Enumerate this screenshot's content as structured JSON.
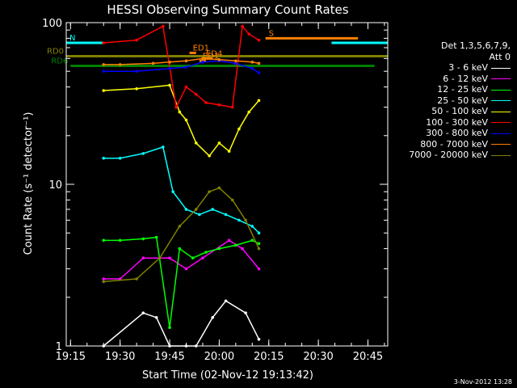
{
  "title": "HESSI Observing Summary Count Rates",
  "stamp": "3-Nov-2012 13:28",
  "chart_data": {
    "type": "line",
    "title": "HESSI Observing Summary Count Rates",
    "xlabel": "Start Time (02-Nov-12 19:13:42)",
    "ylabel": "Count Rate (s⁻¹ detector⁻¹)",
    "x_start": "19:13:42",
    "xlim": [
      "19:13:42",
      "20:51:00"
    ],
    "ylim": [
      1,
      100
    ],
    "ylog": true,
    "xticks": [
      "19:15",
      "19:30",
      "19:45",
      "20:00",
      "20:15",
      "20:30",
      "20:45"
    ],
    "yticks": [
      "1",
      "10",
      "100"
    ],
    "legend_placement": "right",
    "legend_header": [
      "Det 1,3,5,6,7,9,",
      "Att 0"
    ],
    "series": [
      {
        "name": "3 - 6 keV",
        "color": "#ffffff",
        "x": [
          "19:25",
          "19:37",
          "19:41",
          "19:45",
          "19:50",
          "19:53",
          "19:58",
          "20:02",
          "20:08",
          "20:12"
        ],
        "y": [
          1.0,
          1.6,
          1.5,
          1.0,
          1.0,
          1.0,
          1.5,
          1.9,
          1.6,
          1.1
        ]
      },
      {
        "name": "6 - 12 keV",
        "color": "#ff00ff",
        "x": [
          "19:25",
          "19:30",
          "19:37",
          "19:45",
          "19:50",
          "19:55",
          "20:03",
          "20:07",
          "20:12"
        ],
        "y": [
          2.6,
          2.6,
          3.5,
          3.5,
          3.0,
          3.5,
          4.5,
          4.0,
          3.0
        ]
      },
      {
        "name": "12 - 25 keV",
        "color": "#00ff00",
        "x": [
          "19:25",
          "19:30",
          "19:37",
          "19:41",
          "19:45",
          "19:48",
          "19:52",
          "19:56",
          "20:00",
          "20:05",
          "20:10",
          "20:12"
        ],
        "y": [
          4.5,
          4.5,
          4.6,
          4.7,
          1.3,
          4.0,
          3.5,
          3.8,
          4.0,
          4.2,
          4.5,
          4.3
        ]
      },
      {
        "name": "25 - 50 keV",
        "color": "#00ffff",
        "x": [
          "19:25",
          "19:30",
          "19:37",
          "19:43",
          "19:46",
          "19:50",
          "19:54",
          "19:58",
          "20:02",
          "20:06",
          "20:10",
          "20:12"
        ],
        "y": [
          14.5,
          14.5,
          15.5,
          17.0,
          9.0,
          7.0,
          6.5,
          7.0,
          6.5,
          6.0,
          5.5,
          5.0
        ]
      },
      {
        "name": "50 - 100 keV",
        "color": "#ffff00",
        "x": [
          "19:25",
          "19:35",
          "19:45",
          "19:48",
          "19:50",
          "19:53",
          "19:57",
          "20:00",
          "20:03",
          "20:06",
          "20:09",
          "20:12"
        ],
        "y": [
          38,
          39,
          41,
          28,
          25,
          18,
          15,
          18,
          16,
          22,
          28,
          33
        ]
      },
      {
        "name": "100 - 300 keV",
        "color": "#ff0000",
        "x": [
          "19:25",
          "19:35",
          "19:43",
          "19:47",
          "19:50",
          "19:53",
          "19:56",
          "20:00",
          "20:04",
          "20:07",
          "20:09",
          "20:12"
        ],
        "y": [
          75,
          78,
          95,
          30,
          40,
          36,
          32,
          31,
          30,
          95,
          85,
          78
        ]
      },
      {
        "name": "300 - 800 keV",
        "color": "#0000ff",
        "x": [
          "19:25",
          "19:35",
          "19:45",
          "19:50",
          "19:55",
          "20:00",
          "20:05",
          "20:10",
          "20:12"
        ],
        "y": [
          50,
          50,
          52,
          53,
          57,
          58,
          56,
          52,
          49
        ]
      },
      {
        "name": "800 - 7000 keV",
        "color": "#ff8000",
        "x": [
          "19:25",
          "19:30",
          "19:40",
          "19:45",
          "19:50",
          "19:55",
          "20:00",
          "20:05",
          "20:10",
          "20:12"
        ],
        "y": [
          55,
          55,
          56,
          57,
          58,
          60,
          59,
          58,
          57,
          56
        ]
      },
      {
        "name": "7000 - 20000 keV",
        "color": "#808000",
        "x": [
          "19:25",
          "19:35",
          "19:42",
          "19:48",
          "19:53",
          "19:57",
          "20:00",
          "20:04",
          "20:08",
          "20:12"
        ],
        "y": [
          2.5,
          2.6,
          3.5,
          5.5,
          7.0,
          9.0,
          9.5,
          8.0,
          6.0,
          4.0
        ]
      }
    ],
    "overlays": [
      {
        "label": "N",
        "color": "#00ffff",
        "y": 75,
        "spans": [
          [
            "19:13:42",
            "19:25"
          ],
          [
            "20:34",
            "20:51"
          ]
        ]
      },
      {
        "label": "S",
        "color": "#ff8000",
        "y": 80,
        "spans": [
          [
            "20:14",
            "20:42"
          ]
        ]
      },
      {
        "label": "RD0",
        "color": "#808000",
        "y": 62,
        "spans": [
          [
            "19:13:42",
            "20:51"
          ]
        ]
      },
      {
        "label": "RD6",
        "color": "#007f00",
        "y": 54,
        "spans": [
          [
            "19:15",
            "20:43"
          ],
          [
            "20:43",
            "20:47"
          ]
        ]
      },
      {
        "label": "ED1",
        "color": "#ff8000",
        "y": 65,
        "spans": [
          [
            "19:51",
            "19:53"
          ]
        ]
      },
      {
        "label": "ED4",
        "color": "#ff8000",
        "y": 60,
        "spans": [
          [
            "19:55",
            "19:58"
          ]
        ]
      },
      {
        "label": "ED1",
        "color": "#ff8000",
        "y": 58,
        "spans": [
          [
            "19:54",
            "19:56"
          ]
        ]
      }
    ]
  }
}
